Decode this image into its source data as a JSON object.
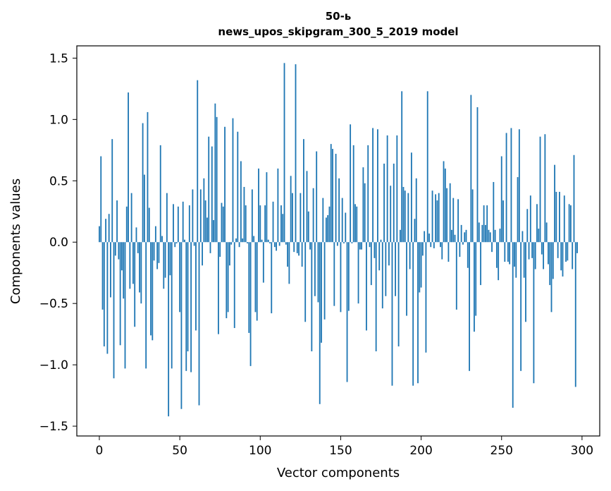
{
  "chart_data": {
    "type": "bar",
    "title": "50-ь",
    "subtitle": "news_upos_skipgram_300_5_2019 model",
    "xlabel": "Vector components",
    "ylabel": "Components values",
    "xlim": [
      -14,
      311
    ],
    "ylim": [
      -1.58,
      1.6
    ],
    "xticks": [
      0,
      50,
      100,
      150,
      200,
      250,
      300
    ],
    "yticks": [
      -1.5,
      -1.0,
      -0.5,
      0.0,
      0.5,
      1.0,
      1.5
    ],
    "ytick_labels": [
      "−1.5",
      "−1.0",
      "−0.5",
      "0.0",
      "0.5",
      "1.0",
      "1.5"
    ],
    "grid": false,
    "bar_color": "#1f77b4",
    "values": [
      0.13,
      0.7,
      -0.55,
      -0.85,
      0.19,
      -0.91,
      0.23,
      -0.45,
      0.84,
      -1.11,
      -0.11,
      0.34,
      -0.14,
      -0.84,
      -0.23,
      -0.46,
      -1.03,
      0.29,
      1.22,
      -0.38,
      0.4,
      -0.34,
      -0.69,
      0.12,
      -0.09,
      -0.41,
      -0.5,
      0.97,
      0.55,
      -1.03,
      1.06,
      0.28,
      -0.76,
      -0.8,
      -0.15,
      0.13,
      -0.22,
      -0.17,
      0.79,
      0.05,
      -0.38,
      -0.29,
      0.4,
      -1.42,
      -0.27,
      -1.03,
      0.31,
      -0.04,
      -0.01,
      0.29,
      -0.57,
      -1.36,
      0.33,
      0.02,
      -1.05,
      -0.89,
      0.3,
      -1.06,
      0.43,
      -0.03,
      -0.72,
      1.32,
      -1.33,
      0.43,
      -0.19,
      0.52,
      0.34,
      0.2,
      0.86,
      -0.09,
      0.78,
      0.18,
      1.13,
      1.02,
      -0.75,
      -0.12,
      0.32,
      0.29,
      0.94,
      -0.62,
      -0.57,
      -0.19,
      -0.02,
      1.01,
      -0.7,
      0.03,
      0.9,
      -0.04,
      0.66,
      0.03,
      0.45,
      0.3,
      -0.01,
      -0.74,
      -1.01,
      0.43,
      0.05,
      -0.57,
      -0.64,
      0.6,
      0.3,
      0.02,
      -0.33,
      0.3,
      0.57,
      0.02,
      -0.01,
      -0.58,
      0.33,
      -0.04,
      -0.07,
      0.6,
      -0.03,
      0.3,
      0.23,
      1.46,
      -0.02,
      -0.2,
      -0.34,
      0.54,
      0.4,
      -0.08,
      1.45,
      -0.09,
      -0.11,
      0.4,
      -0.2,
      0.84,
      -0.65,
      0.58,
      0.25,
      -0.06,
      -0.89,
      0.44,
      -0.44,
      0.74,
      -0.49,
      -1.32,
      -0.82,
      0.36,
      -0.63,
      0.2,
      0.22,
      0.29,
      0.8,
      0.76,
      -0.52,
      0.72,
      -0.03,
      0.52,
      -0.57,
      0.36,
      -0.01,
      0.24,
      -1.14,
      -0.56,
      0.96,
      -0.01,
      0.79,
      0.31,
      0.29,
      -0.5,
      -0.06,
      -0.06,
      0.61,
      0.48,
      -0.72,
      0.79,
      -0.04,
      -0.35,
      0.93,
      -0.13,
      -0.89,
      0.92,
      -0.23,
      0.02,
      -0.54,
      0.64,
      -0.44,
      0.87,
      -0.19,
      0.46,
      -1.17,
      0.64,
      -0.44,
      0.87,
      -0.85,
      0.1,
      1.23,
      0.45,
      0.42,
      -0.6,
      0.4,
      -0.22,
      0.73,
      -1.17,
      0.19,
      0.52,
      -1.15,
      -0.41,
      -0.37,
      -0.11,
      0.09,
      -0.9,
      1.23,
      0.07,
      -0.04,
      0.42,
      -0.05,
      0.39,
      0.34,
      0.4,
      -0.04,
      -0.14,
      0.66,
      0.6,
      0.44,
      -0.16,
      0.48,
      0.1,
      0.36,
      0.06,
      -0.55,
      0.35,
      -0.12,
      0.14,
      -0.02,
      0.08,
      0.1,
      -0.21,
      -1.05,
      1.2,
      0.43,
      -0.73,
      -0.6,
      1.1,
      0.16,
      -0.35,
      0.14,
      0.3,
      0.14,
      0.3,
      0.1,
      0.08,
      -0.08,
      0.49,
      0.1,
      -0.21,
      -0.31,
      0.11,
      0.7,
      0.34,
      -0.16,
      0.89,
      -0.16,
      -0.18,
      0.93,
      -1.35,
      -0.2,
      -0.29,
      0.53,
      0.92,
      -1.05,
      0.09,
      -0.29,
      -0.65,
      0.27,
      -0.14,
      0.38,
      -0.13,
      -1.15,
      -0.22,
      0.31,
      0.11,
      0.86,
      -0.1,
      -0.22,
      0.88,
      0.16,
      -0.18,
      -0.35,
      -0.57,
      -0.3,
      0.63,
      0.41,
      -0.13,
      0.41,
      -0.23,
      -0.28,
      0.38,
      -0.16,
      -0.15,
      0.31,
      0.3,
      -0.22,
      0.71,
      -1.18,
      -0.09
    ]
  }
}
